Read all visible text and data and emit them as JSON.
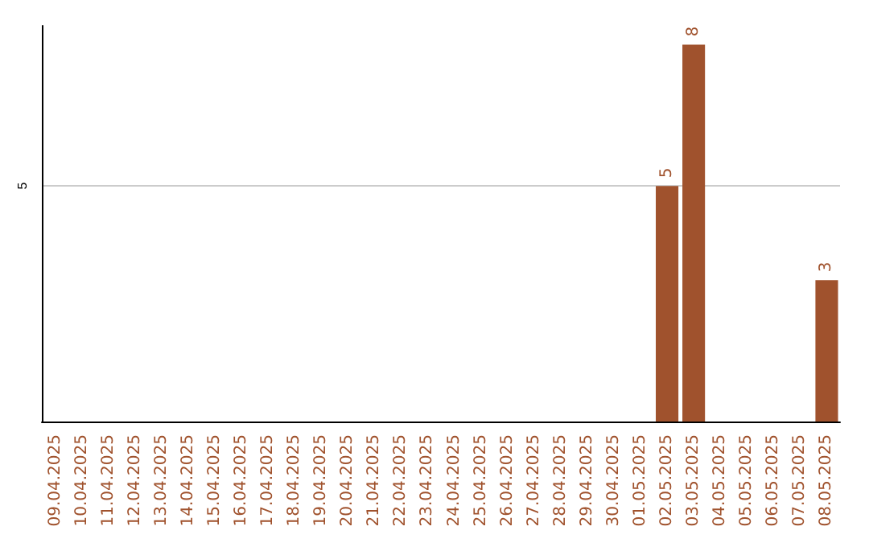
{
  "chart_data": {
    "type": "bar",
    "categories": [
      "09.04.2025",
      "10.04.2025",
      "11.04.2025",
      "12.04.2025",
      "13.04.2025",
      "14.04.2025",
      "15.04.2025",
      "16.04.2025",
      "17.04.2025",
      "18.04.2025",
      "19.04.2025",
      "20.04.2025",
      "21.04.2025",
      "22.04.2025",
      "23.04.2025",
      "24.04.2025",
      "25.04.2025",
      "26.04.2025",
      "27.04.2025",
      "28.04.2025",
      "29.04.2025",
      "30.04.2025",
      "01.05.2025",
      "02.05.2025",
      "03.05.2025",
      "04.05.2025",
      "05.05.2025",
      "06.05.2025",
      "07.05.2025",
      "08.05.2025"
    ],
    "values": [
      null,
      null,
      null,
      null,
      null,
      null,
      null,
      null,
      null,
      null,
      null,
      null,
      null,
      null,
      null,
      null,
      null,
      null,
      null,
      null,
      null,
      null,
      null,
      5,
      8,
      null,
      null,
      null,
      null,
      3
    ],
    "color": "#a0522d",
    "ylim": [
      0,
      8.4
    ],
    "yticks": [
      5
    ],
    "grid": "y",
    "data_labels": true
  }
}
